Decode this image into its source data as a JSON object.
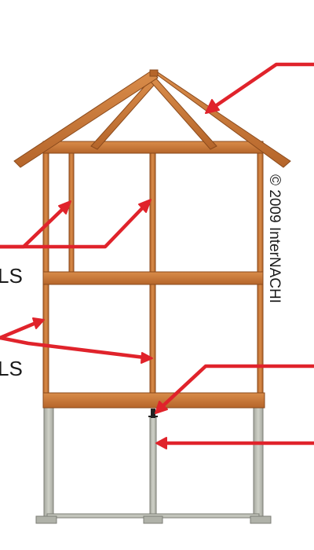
{
  "diagram": {
    "copyright": "© 2009 InterNACHI",
    "labels": [
      {
        "id": "upper-walls",
        "text": "LS"
      },
      {
        "id": "lower-walls",
        "text": "LS"
      }
    ],
    "colors": {
      "wood": "#c8773a",
      "wood_dark": "#8a4a1c",
      "wood_light": "#dc9553",
      "concrete": "#b9bbb2",
      "concrete_dark": "#7c7e76",
      "arrow": "#e0232b",
      "text": "#1a1a1a"
    }
  }
}
